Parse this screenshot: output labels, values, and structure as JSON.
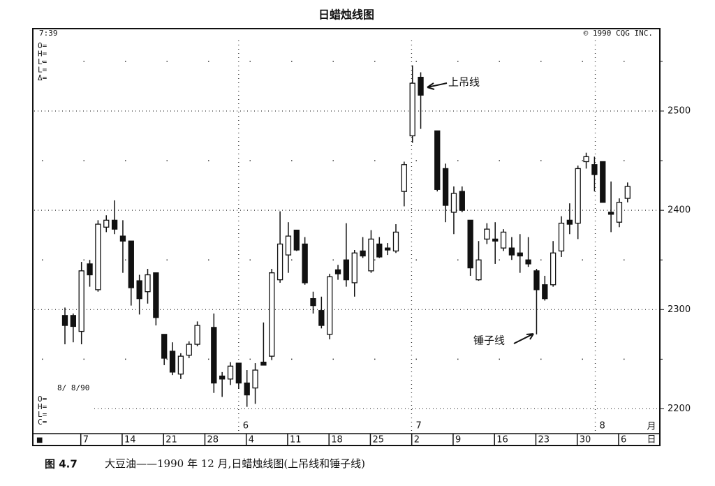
{
  "chart_data": {
    "type": "candlestick",
    "title": "日蜡烛线图",
    "figure_number": "图 4.7",
    "caption": "大豆油——1990 年 12 月,日蜡烛线图(上吊线和锤子线)",
    "clock": "7:39",
    "copyright": "© 1990 CQG INC.",
    "top_fields": [
      "O=",
      "H=",
      "L=",
      "L=",
      "Δ="
    ],
    "date_stamp": "8/ 8/90",
    "bottom_fields": [
      "O=",
      "H=",
      "L=",
      "C="
    ],
    "axis_unit_month": "月",
    "axis_unit_day": "日",
    "axis_marker": "■",
    "month_labels": [
      "6",
      "7",
      "8"
    ],
    "annotations": [
      {
        "text": "上吊线"
      },
      {
        "text": "锤子线"
      }
    ],
    "categories": [
      null,
      null,
      "7",
      null,
      null,
      null,
      null,
      "14",
      null,
      null,
      null,
      null,
      "21",
      null,
      null,
      null,
      null,
      "28",
      null,
      null,
      null,
      null,
      "4",
      null,
      null,
      null,
      null,
      "11",
      null,
      null,
      null,
      null,
      "18",
      null,
      null,
      null,
      null,
      "25",
      null,
      null,
      null,
      null,
      "2",
      null,
      null,
      null,
      null,
      "9",
      null,
      null,
      null,
      null,
      "16",
      null,
      null,
      null,
      null,
      "23",
      null,
      null,
      null,
      null,
      "30",
      null,
      null,
      null,
      null,
      "6",
      null
    ],
    "open": [
      2294,
      2294,
      2278,
      2346,
      2320,
      2383,
      2390,
      2374,
      2369,
      2329,
      2318,
      2337,
      2275,
      2258,
      2235,
      2254,
      2265,
      null,
      2282,
      2233,
      2230,
      2246,
      2226,
      2221,
      2247,
      2253,
      2330,
      2355,
      2380,
      2366,
      2311,
      2299,
      2275,
      2340,
      2350,
      2327,
      2359,
      2339,
      2366,
      2362,
      2359,
      2419,
      2475,
      2534,
      null,
      2480,
      2442,
      2398,
      2419,
      2390,
      2330,
      2371,
      2371,
      2362,
      2362,
      2357,
      2350,
      2339,
      2325,
      2325,
      2359,
      2390,
      2387,
      2449,
      2446,
      2449,
      2398,
      2388,
      2412
    ],
    "high": [
      2302,
      2296,
      2348,
      2350,
      2390,
      2395,
      2410,
      2390,
      2369,
      2335,
      2341,
      2337,
      2275,
      2267,
      2256,
      2268,
      2288,
      null,
      2296,
      2237,
      2247,
      2246,
      2239,
      2246,
      2287,
      2341,
      2399,
      2388,
      2380,
      2373,
      2318,
      2313,
      2336,
      2345,
      2387,
      2360,
      2373,
      2380,
      2373,
      2367,
      2386,
      2449,
      2546,
      2539,
      null,
      2480,
      2447,
      2424,
      2424,
      2390,
      2369,
      2387,
      2388,
      2381,
      2373,
      2376,
      2373,
      2341,
      2334,
      2369,
      2394,
      2407,
      2445,
      2458,
      2454,
      2449,
      2429,
      2412,
      2428
    ],
    "low": [
      2265,
      2267,
      2265,
      2323,
      2318,
      2378,
      2376,
      2337,
      2304,
      2295,
      2306,
      2284,
      2244,
      2234,
      2230,
      2251,
      2263,
      null,
      2216,
      2212,
      2224,
      2220,
      2202,
      2205,
      2244,
      2249,
      2327,
      2337,
      2359,
      2325,
      2296,
      2281,
      2270,
      2330,
      2323,
      2313,
      2352,
      2337,
      2352,
      2355,
      2357,
      2404,
      2468,
      2482,
      null,
      2419,
      2388,
      2376,
      2398,
      2334,
      2329,
      2366,
      2346,
      2359,
      2350,
      2337,
      2343,
      2275,
      2309,
      2323,
      2353,
      2376,
      2371,
      2442,
      2419,
      2408,
      2378,
      2383,
      2408
    ],
    "close": [
      2284,
      2283,
      2339,
      2335,
      2386,
      2390,
      2381,
      2369,
      2322,
      2311,
      2335,
      2292,
      2251,
      2237,
      2253,
      2265,
      2284,
      null,
      2226,
      2230,
      2243,
      2226,
      2214,
      2239,
      2244,
      2337,
      2366,
      2374,
      2360,
      2327,
      2304,
      2284,
      2333,
      2336,
      2330,
      2357,
      2354,
      2371,
      2353,
      2360,
      2378,
      2446,
      2528,
      2516,
      null,
      2421,
      2405,
      2417,
      2400,
      2342,
      2350,
      2381,
      2369,
      2378,
      2355,
      2354,
      2346,
      2320,
      2311,
      2357,
      2387,
      2386,
      2442,
      2454,
      2436,
      2408,
      2396,
      2408,
      2424
    ],
    "up_color": "#ffffff",
    "down_color": "#111111",
    "ylim": [
      2175,
      2583
    ],
    "yticks": [
      2200,
      2300,
      2400,
      2500
    ],
    "minor_yticks": [
      2250,
      2350,
      2450,
      2550
    ],
    "grid": true
  }
}
